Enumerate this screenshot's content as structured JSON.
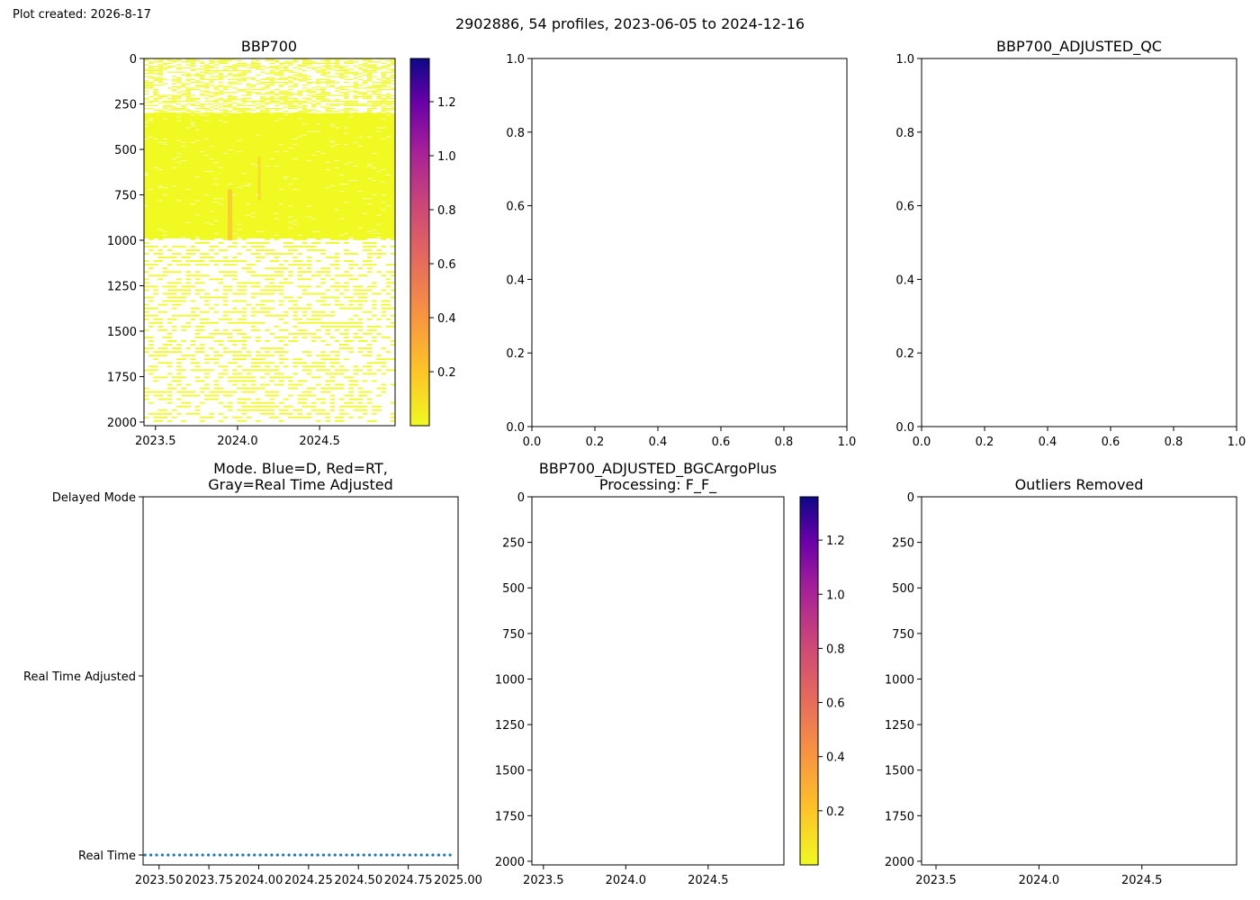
{
  "figure": {
    "caption": "Plot created: 2026-8-17",
    "suptitle": "2902886, 54 profiles, 2023-06-05 to 2024-12-16"
  },
  "chart_data": [
    {
      "type": "heatmap",
      "title": "BBP700",
      "xlim": [
        2023.43,
        2024.96
      ],
      "ylim": [
        2020,
        0
      ],
      "xticks": [
        "2023.5",
        "2024.0",
        "2024.5"
      ],
      "yticks": [
        "0",
        "250",
        "500",
        "750",
        "1000",
        "1250",
        "1500",
        "1750",
        "2000"
      ],
      "colormap": "plasma_r",
      "colorbar": {
        "range": [
          0.0,
          1.36
        ],
        "ticks": [
          "0.2",
          "0.4",
          "0.6",
          "0.8",
          "1.0",
          "1.2"
        ]
      },
      "profiles": 54,
      "dense_depth_range": [
        300,
        990
      ],
      "typical_value": 0.002,
      "colors": {
        "low": "#f0f921",
        "high": "#0d0887",
        "anomaly": "#f8c931"
      }
    },
    {
      "type": "scatter",
      "title": "",
      "xlim": [
        0,
        1
      ],
      "ylim": [
        0,
        1
      ],
      "xticks": [
        "0.0",
        "0.2",
        "0.4",
        "0.6",
        "0.8",
        "1.0"
      ],
      "yticks": [
        "0.0",
        "0.2",
        "0.4",
        "0.6",
        "0.8",
        "1.0"
      ]
    },
    {
      "type": "scatter",
      "title": "BBP700_ADJUSTED_QC",
      "xlim": [
        0,
        1
      ],
      "ylim": [
        0,
        1
      ],
      "xticks": [
        "0.0",
        "0.2",
        "0.4",
        "0.6",
        "0.8",
        "1.0"
      ],
      "yticks": [
        "0.0",
        "0.2",
        "0.4",
        "0.6",
        "0.8",
        "1.0"
      ]
    },
    {
      "type": "scatter",
      "title_lines": [
        "Mode. Blue=D, Red=RT,",
        "Gray=Real Time Adjusted"
      ],
      "xlim": [
        2023.42,
        2025.0
      ],
      "xticks": [
        "2023.50",
        "2023.75",
        "2024.00",
        "2024.25",
        "2024.50",
        "2024.75",
        "2025.00"
      ],
      "ycategories": [
        "Delayed Mode",
        "Real Time Adjusted",
        "Real Time"
      ],
      "series": [
        {
          "mode": "Real Time",
          "x_start": 2023.43,
          "x_end": 2024.96,
          "count": 54,
          "color": "#1f77b4"
        }
      ]
    },
    {
      "type": "heatmap",
      "title_lines": [
        "BBP700_ADJUSTED_BGCArgoPlus",
        "Processing: F_F_"
      ],
      "xlim": [
        2023.43,
        2024.96
      ],
      "ylim": [
        2020,
        0
      ],
      "xticks": [
        "2023.5",
        "2024.0",
        "2024.5"
      ],
      "yticks": [
        "0",
        "250",
        "500",
        "750",
        "1000",
        "1250",
        "1500",
        "1750",
        "2000"
      ],
      "colorbar": {
        "range": [
          0.0,
          1.36
        ],
        "ticks": [
          "0.2",
          "0.4",
          "0.6",
          "0.8",
          "1.0",
          "1.2"
        ]
      }
    },
    {
      "type": "heatmap",
      "title": "Outliers Removed",
      "xlim": [
        2023.43,
        2024.96
      ],
      "ylim": [
        2020,
        0
      ],
      "xticks": [
        "2023.5",
        "2024.0",
        "2024.5"
      ],
      "yticks": [
        "0",
        "250",
        "500",
        "750",
        "1000",
        "1250",
        "1500",
        "1750",
        "2000"
      ]
    }
  ]
}
